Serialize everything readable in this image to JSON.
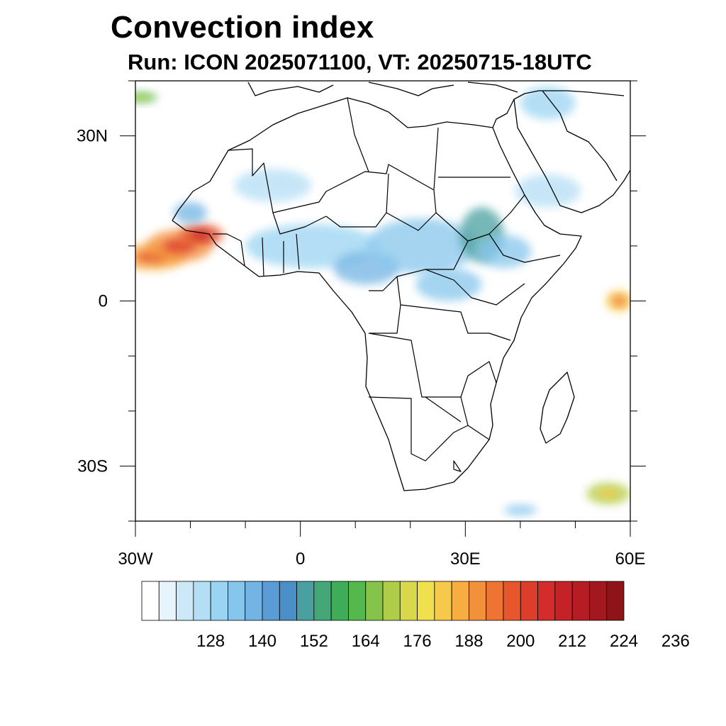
{
  "title": "Convection index",
  "subtitle": "Run: ICON 2025071100,  VT: 20250715-18UTC",
  "map": {
    "extent": {
      "lon": [
        -30,
        60
      ],
      "lat": [
        -40,
        40
      ]
    },
    "lon_ticks": [
      {
        "value": -30,
        "label": "30W"
      },
      {
        "value": 0,
        "label": "0"
      },
      {
        "value": 30,
        "label": "30E"
      },
      {
        "value": 60,
        "label": "60E"
      }
    ],
    "lat_ticks": [
      {
        "value": 30,
        "label": "30N"
      },
      {
        "value": 0,
        "label": "0"
      },
      {
        "value": -30,
        "label": "30S"
      }
    ]
  },
  "colorbar": {
    "levels_start": 116,
    "level_step": 4,
    "label_values": [
      "128",
      "140",
      "152",
      "164",
      "176",
      "188",
      "200",
      "212",
      "224",
      "236"
    ],
    "colors": [
      "#ffffff",
      "#e6f4fc",
      "#cde9f8",
      "#b4def5",
      "#9ad4f2",
      "#86c6ec",
      "#72b4e3",
      "#5a9dd6",
      "#4a8fc8",
      "#4a9fa0",
      "#45a677",
      "#3fac5a",
      "#55b84c",
      "#86c34a",
      "#b0cd4a",
      "#d8d84c",
      "#f0e04e",
      "#f7c94a",
      "#f7ad42",
      "#f3913a",
      "#ee7434",
      "#e6572e",
      "#dd3e2b",
      "#d42c2a",
      "#c52228",
      "#b51c24",
      "#a3181f",
      "#8e1419"
    ]
  },
  "convection_areas": [
    {
      "lon": -27,
      "lat": 8,
      "rx": 6,
      "ry": 2.5,
      "level": 18
    },
    {
      "lon": -22,
      "lat": 10,
      "rx": 6,
      "ry": 3,
      "level": 19
    },
    {
      "lon": -18,
      "lat": 12,
      "rx": 4,
      "ry": 2,
      "level": 21
    },
    {
      "lon": -20,
      "lat": 16,
      "rx": 3,
      "ry": 2,
      "level": 6
    },
    {
      "lon": -5,
      "lat": 21,
      "rx": 7,
      "ry": 3,
      "level": 3
    },
    {
      "lon": 2,
      "lat": 10,
      "rx": 12,
      "ry": 4,
      "level": 4
    },
    {
      "lon": 12,
      "lat": 6,
      "rx": 6,
      "ry": 3,
      "level": 6
    },
    {
      "lon": 22,
      "lat": 10,
      "rx": 10,
      "ry": 5,
      "level": 5
    },
    {
      "lon": 27,
      "lat": 3,
      "rx": 6,
      "ry": 3,
      "level": 5
    },
    {
      "lon": 33,
      "lat": 12,
      "rx": 4,
      "ry": 5,
      "level": 9
    },
    {
      "lon": 37,
      "lat": 9,
      "rx": 5,
      "ry": 3,
      "level": 5
    },
    {
      "lon": 45,
      "lat": 20,
      "rx": 6,
      "ry": 3,
      "level": 3
    },
    {
      "lon": 45,
      "lat": 36,
      "rx": 5,
      "ry": 3,
      "level": 4
    },
    {
      "lon": 58,
      "lat": 0,
      "rx": 2.5,
      "ry": 2,
      "level": 17
    },
    {
      "lon": 56,
      "lat": -35,
      "rx": 4,
      "ry": 2,
      "level": 14
    },
    {
      "lon": 40,
      "lat": -38,
      "rx": 3,
      "ry": 1,
      "level": 5
    },
    {
      "lon": -29,
      "lat": 37,
      "rx": 3,
      "ry": 1,
      "level": 12
    }
  ]
}
